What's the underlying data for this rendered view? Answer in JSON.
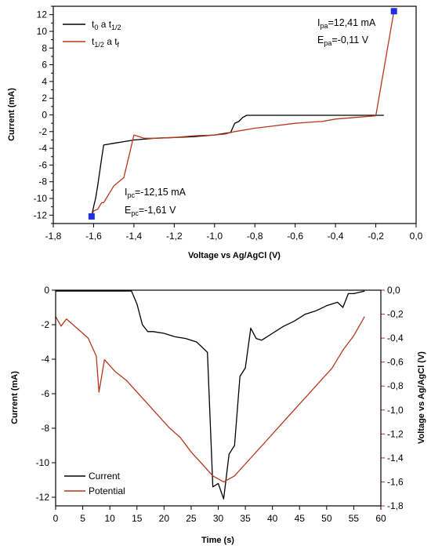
{
  "colors": {
    "black": "#000000",
    "red": "#b5371c",
    "marker": "#1f2fe0"
  },
  "chart_data": [
    {
      "type": "line",
      "xlabel": "Voltage vs Ag/AgCl (V)",
      "ylabel": "Current (mA)",
      "xlim": [
        -1.8,
        0.0
      ],
      "ylim": [
        -13,
        13
      ],
      "xticks": [
        "-1,8",
        "-1,6",
        "-1,4",
        "-1,2",
        "-1,0",
        "-0,8",
        "-0,6",
        "-0,4",
        "-0,2",
        "0,0"
      ],
      "yticks": [
        "12",
        "10",
        "8",
        "6",
        "4",
        "2",
        "0",
        "-2",
        "-4",
        "-6",
        "-8",
        "-10",
        "-12"
      ],
      "legend": [
        {
          "base": "t",
          "sub1": "0",
          "mid": " a t",
          "sub2": "1/2"
        },
        {
          "base": "t",
          "sub1": "1/2",
          "mid": " a t",
          "sub2": "f"
        }
      ],
      "annotations": {
        "anodic": {
          "i_base": "I",
          "i_sub": "pa",
          "i_val": "=12,41 mA",
          "e_base": "E",
          "e_sub": "pa",
          "e_val": "=-0,11 V"
        },
        "cathodic": {
          "i_base": "I",
          "i_sub": "pc",
          "i_val": "=-12,15 mA",
          "e_base": "E",
          "e_sub": "pc",
          "e_val": "=-1,61 V"
        }
      },
      "markers": [
        {
          "x": -0.11,
          "y": 12.41
        },
        {
          "x": -1.61,
          "y": -12.15
        }
      ],
      "series": [
        {
          "name": "t0 a t1/2",
          "color": "#000000",
          "x": [
            -0.16,
            -0.2,
            -0.3,
            -0.45,
            -0.6,
            -0.7,
            -0.84,
            -0.86,
            -0.88,
            -0.9,
            -0.92,
            -1.0,
            -1.1,
            -1.2,
            -1.3,
            -1.4,
            -1.45,
            -1.5,
            -1.55,
            -1.56,
            -1.58,
            -1.59,
            -1.6,
            -1.61
          ],
          "y": [
            -0.05,
            -0.05,
            -0.05,
            -0.05,
            -0.05,
            -0.05,
            -0.05,
            -0.3,
            -0.8,
            -1.0,
            -2.1,
            -2.4,
            -2.6,
            -2.7,
            -2.8,
            -3.0,
            -3.2,
            -3.4,
            -3.6,
            -5.2,
            -8.5,
            -10.0,
            -11.0,
            -12.15
          ]
        },
        {
          "name": "t1/2 a tf",
          "color": "#b5371c",
          "x": [
            -1.61,
            -1.6,
            -1.58,
            -1.56,
            -1.55,
            -1.5,
            -1.45,
            -1.42,
            -1.4,
            -1.35,
            -1.3,
            -1.2,
            -1.1,
            -1.0,
            -0.95,
            -0.9,
            -0.8,
            -0.7,
            -0.6,
            -0.48,
            -0.47,
            -0.4,
            -0.3,
            -0.2,
            -0.11
          ],
          "y": [
            -12.15,
            -11.5,
            -11.3,
            -10.5,
            -10.5,
            -8.5,
            -7.5,
            -4.5,
            -2.4,
            -2.8,
            -2.8,
            -2.7,
            -2.5,
            -2.4,
            -2.3,
            -2.0,
            -1.6,
            -1.3,
            -1.0,
            -0.8,
            -0.8,
            -0.5,
            -0.3,
            -0.1,
            12.41
          ]
        }
      ]
    },
    {
      "type": "line",
      "xlabel": "Time (s)",
      "ylabel": "Current (mA)",
      "y2label": "Voltage vs Ag/AgCl (V)",
      "xlim": [
        0,
        60
      ],
      "ylim": [
        -12.5,
        0
      ],
      "y2lim": [
        -1.8,
        0.0
      ],
      "xticks": [
        "0",
        "5",
        "10",
        "15",
        "20",
        "25",
        "30",
        "35",
        "40",
        "45",
        "50",
        "55",
        "60"
      ],
      "yticks": [
        "0",
        "-2",
        "-4",
        "-6",
        "-8",
        "-10",
        "-12"
      ],
      "y2ticks": [
        "0,0",
        "-0,2",
        "-0,4",
        "-0,6",
        "-0,8",
        "-1,0",
        "-1,2",
        "-1,4",
        "-1,6",
        "-1,8"
      ],
      "legend": [
        "Current",
        "Potential"
      ],
      "series": [
        {
          "name": "Current",
          "color": "#000000",
          "axis": "left",
          "x": [
            0,
            5,
            10,
            13,
            14,
            15,
            16,
            17,
            18,
            20,
            22,
            24,
            26,
            27,
            28,
            29,
            30,
            31,
            32,
            33,
            34,
            35,
            36,
            37,
            38,
            40,
            42,
            44,
            46,
            48,
            50,
            52,
            53,
            54,
            55,
            57
          ],
          "y": [
            -0.05,
            -0.05,
            -0.05,
            -0.05,
            -0.05,
            -0.8,
            -2.0,
            -2.4,
            -2.4,
            -2.5,
            -2.7,
            -2.8,
            -3.0,
            -3.3,
            -3.6,
            -11.4,
            -11.2,
            -12.1,
            -9.5,
            -9.0,
            -5.0,
            -4.5,
            -2.2,
            -2.8,
            -2.9,
            -2.5,
            -2.1,
            -1.8,
            -1.4,
            -1.2,
            -0.9,
            -0.7,
            -1.0,
            -0.2,
            -0.2,
            -0.05
          ]
        },
        {
          "name": "Potential",
          "color": "#b5371c",
          "axis": "right",
          "x": [
            0,
            1,
            2,
            4,
            6,
            7,
            7.5,
            8,
            9,
            11,
            13,
            15,
            17,
            19,
            21,
            23,
            25,
            27,
            29,
            31,
            33,
            35,
            37,
            39,
            41,
            43,
            45,
            47,
            49,
            51,
            53,
            55,
            57
          ],
          "y": [
            -0.22,
            -0.3,
            -0.24,
            -0.32,
            -0.4,
            -0.5,
            -0.55,
            -0.85,
            -0.58,
            -0.68,
            -0.75,
            -0.85,
            -0.95,
            -1.05,
            -1.15,
            -1.23,
            -1.35,
            -1.45,
            -1.55,
            -1.6,
            -1.55,
            -1.45,
            -1.35,
            -1.25,
            -1.15,
            -1.05,
            -0.95,
            -0.85,
            -0.75,
            -0.65,
            -0.5,
            -0.38,
            -0.22
          ]
        }
      ]
    }
  ]
}
